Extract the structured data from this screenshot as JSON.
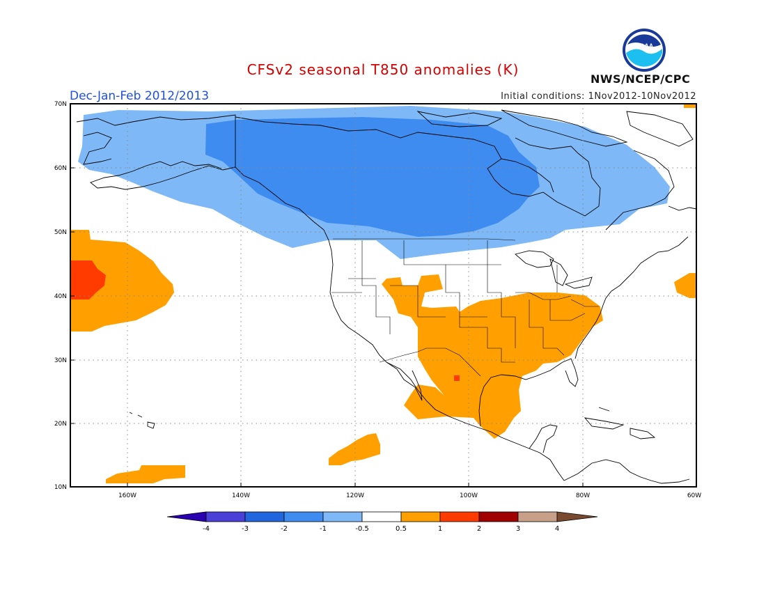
{
  "header": {
    "title": "CFSv2 seasonal T850 anomalies (K)",
    "period": "Dec-Jan-Feb 2012/2013",
    "initial_conditions": "Initial conditions: 1Nov2012-10Nov2012",
    "organization": "NWS/NCEP/CPC",
    "logo_text": "NOAA"
  },
  "map": {
    "lat_labels": [
      "70N",
      "60N",
      "50N",
      "40N",
      "30N",
      "20N",
      "10N"
    ],
    "lon_labels": [
      "160W",
      "140W",
      "120W",
      "100W",
      "80W",
      "60W"
    ],
    "lat_range": [
      10,
      70
    ],
    "lon_range": [
      -170,
      -60
    ],
    "gridlines": "dotted"
  },
  "colorbar": {
    "labels": [
      "-4",
      "-3",
      "-2",
      "-1",
      "-0.5",
      "0.5",
      "1",
      "2",
      "3",
      "4"
    ],
    "colors": [
      "#2a00b0",
      "#4a3fd6",
      "#2266dd",
      "#3e8cf0",
      "#7eb8f6",
      "#ffffff",
      "#ffa000",
      "#ff3b00",
      "#a00000",
      "#c8a08a",
      "#7a4a30"
    ]
  },
  "anomaly_colors": {
    "cold_strong": "#3e8cf0",
    "cold_weak": "#7eb8f6",
    "warm_weak": "#ffa000",
    "warm_strong": "#ff3b00"
  }
}
